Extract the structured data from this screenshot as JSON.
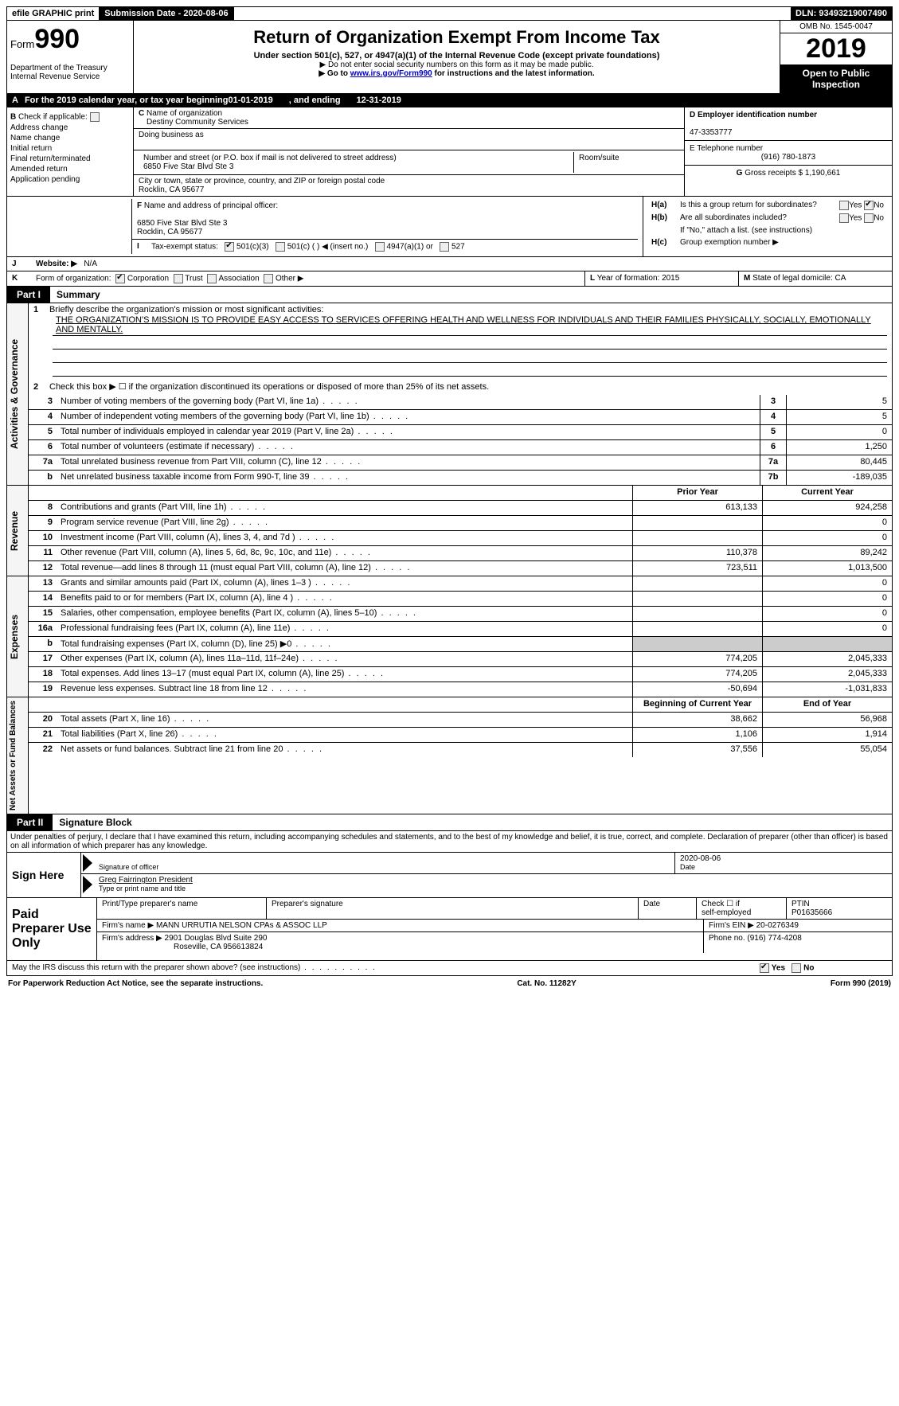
{
  "topbar": {
    "efile": "efile GRAPHIC print",
    "submission_label": "Submission Date - ",
    "submission_date": "2020-08-06",
    "dln_label": "DLN: ",
    "dln": "93493219007490"
  },
  "header": {
    "form_prefix": "Form",
    "form_number": "990",
    "dept": "Department of the Treasury",
    "irs": "Internal Revenue Service",
    "title": "Return of Organization Exempt From Income Tax",
    "subtitle": "Under section 501(c), 527, or 4947(a)(1) of the Internal Revenue Code (except private foundations)",
    "note1": "▶ Do not enter social security numbers on this form as it may be made public.",
    "note2_pre": "▶ Go to ",
    "note2_link": "www.irs.gov/Form990",
    "note2_post": " for instructions and the latest information.",
    "omb": "OMB No. 1545-0047",
    "year": "2019",
    "open": "Open to Public Inspection"
  },
  "periodline": {
    "a_label": "A",
    "text_pre": "For the 2019 calendar year, or tax year beginning ",
    "begin": "01-01-2019",
    "mid": ", and ending ",
    "end": "12-31-2019"
  },
  "boxB": {
    "label": "B",
    "check_label": "Check if applicable:",
    "items": [
      "Address change",
      "Name change",
      "Initial return",
      "Final return/terminated",
      "Amended return",
      "Application pending"
    ]
  },
  "boxC": {
    "c_label": "C",
    "name_label": "Name of organization",
    "name": "Destiny Community Services",
    "dba_label": "Doing business as",
    "dba": "",
    "street_label": "Number and street (or P.O. box if mail is not delivered to street address)",
    "street": "6850 Five Star Blvd Ste 3",
    "room_label": "Room/suite",
    "city_label": "City or town, state or province, country, and ZIP or foreign postal code",
    "city": "Rocklin, CA  95677"
  },
  "boxD": {
    "label": "D Employer identification number",
    "ein": "47-3353777"
  },
  "boxE": {
    "label": "E Telephone number",
    "phone": "(916) 780-1873"
  },
  "boxG": {
    "label": "G",
    "text": "Gross receipts $ ",
    "amount": "1,190,661"
  },
  "boxF": {
    "label": "F",
    "text": "Name and address of principal officer:",
    "line1": "6850 Five Star Blvd Ste 3",
    "line2": "Rocklin, CA  95677"
  },
  "boxH": {
    "ha_label": "H(a)",
    "ha_text": "Is this a group return for subordinates?",
    "hb_label": "H(b)",
    "hb_text": "Are all subordinates included?",
    "hb_note": "If \"No,\" attach a list. (see instructions)",
    "hc_label": "H(c)",
    "hc_text": "Group exemption number ▶",
    "yes": "Yes",
    "no": "No"
  },
  "boxI": {
    "label": "I",
    "text": "Tax-exempt status:",
    "opt1": "501(c)(3)",
    "opt2": "501(c) (  ) ◀ (insert no.)",
    "opt3": "4947(a)(1) or",
    "opt4": "527"
  },
  "boxJ": {
    "label": "J",
    "text": "Website: ▶",
    "value": "N/A"
  },
  "boxK": {
    "label": "K",
    "text": "Form of organization:",
    "opts": [
      "Corporation",
      "Trust",
      "Association",
      "Other ▶"
    ]
  },
  "boxL": {
    "label": "L",
    "text": "Year of formation: ",
    "val": "2015"
  },
  "boxM": {
    "label": "M",
    "text": "State of legal domicile: ",
    "val": "CA"
  },
  "part1": {
    "tab": "Part I",
    "title": "Summary"
  },
  "summary": {
    "sec1_label": "Activities & Governance",
    "line1_num": "1",
    "line1_text": "Briefly describe the organization's mission or most significant activities:",
    "line1_mission": "THE ORGANIZATION'S MISSION IS TO PROVIDE EASY ACCESS TO SERVICES OFFERING HEALTH AND WELLNESS FOR INDIVIDUALS AND THEIR FAMILIES PHYSICALLY, SOCIALLY, EMOTIONALLY AND MENTALLY.",
    "line2_num": "2",
    "line2_text": "Check this box ▶ ☐ if the organization discontinued its operations or disposed of more than 25% of its net assets.",
    "rows_ag": [
      {
        "n": "3",
        "d": "Number of voting members of the governing body (Part VI, line 1a)",
        "box": "3",
        "v": "5"
      },
      {
        "n": "4",
        "d": "Number of independent voting members of the governing body (Part VI, line 1b)",
        "box": "4",
        "v": "5"
      },
      {
        "n": "5",
        "d": "Total number of individuals employed in calendar year 2019 (Part V, line 2a)",
        "box": "5",
        "v": "0"
      },
      {
        "n": "6",
        "d": "Total number of volunteers (estimate if necessary)",
        "box": "6",
        "v": "1,250"
      },
      {
        "n": "7a",
        "d": "Total unrelated business revenue from Part VIII, column (C), line 12",
        "box": "7a",
        "v": "80,445"
      },
      {
        "n": "b",
        "d": "Net unrelated business taxable income from Form 990-T, line 39",
        "box": "7b",
        "v": "-189,035"
      }
    ],
    "prior_label": "Prior Year",
    "current_label": "Current Year",
    "sec2_label": "Revenue",
    "rows_rev": [
      {
        "n": "8",
        "d": "Contributions and grants (Part VIII, line 1h)",
        "p": "613,133",
        "c": "924,258"
      },
      {
        "n": "9",
        "d": "Program service revenue (Part VIII, line 2g)",
        "p": "",
        "c": "0"
      },
      {
        "n": "10",
        "d": "Investment income (Part VIII, column (A), lines 3, 4, and 7d )",
        "p": "",
        "c": "0"
      },
      {
        "n": "11",
        "d": "Other revenue (Part VIII, column (A), lines 5, 6d, 8c, 9c, 10c, and 11e)",
        "p": "110,378",
        "c": "89,242"
      },
      {
        "n": "12",
        "d": "Total revenue—add lines 8 through 11 (must equal Part VIII, column (A), line 12)",
        "p": "723,511",
        "c": "1,013,500"
      }
    ],
    "sec3_label": "Expenses",
    "rows_exp": [
      {
        "n": "13",
        "d": "Grants and similar amounts paid (Part IX, column (A), lines 1–3 )",
        "p": "",
        "c": "0"
      },
      {
        "n": "14",
        "d": "Benefits paid to or for members (Part IX, column (A), line 4 )",
        "p": "",
        "c": "0"
      },
      {
        "n": "15",
        "d": "Salaries, other compensation, employee benefits (Part IX, column (A), lines 5–10)",
        "p": "",
        "c": "0"
      },
      {
        "n": "16a",
        "d": "Professional fundraising fees (Part IX, column (A), line 11e)",
        "p": "",
        "c": "0"
      },
      {
        "n": "b",
        "d": "Total fundraising expenses (Part IX, column (D), line 25) ▶0",
        "p": "shade",
        "c": "shade"
      },
      {
        "n": "17",
        "d": "Other expenses (Part IX, column (A), lines 11a–11d, 11f–24e)",
        "p": "774,205",
        "c": "2,045,333"
      },
      {
        "n": "18",
        "d": "Total expenses. Add lines 13–17 (must equal Part IX, column (A), line 25)",
        "p": "774,205",
        "c": "2,045,333"
      },
      {
        "n": "19",
        "d": "Revenue less expenses. Subtract line 18 from line 12",
        "p": "-50,694",
        "c": "-1,031,833"
      }
    ],
    "sec4_label": "Net Assets or Fund Balances",
    "begin_label": "Beginning of Current Year",
    "end_label": "End of Year",
    "rows_na": [
      {
        "n": "20",
        "d": "Total assets (Part X, line 16)",
        "p": "38,662",
        "c": "56,968"
      },
      {
        "n": "21",
        "d": "Total liabilities (Part X, line 26)",
        "p": "1,106",
        "c": "1,914"
      },
      {
        "n": "22",
        "d": "Net assets or fund balances. Subtract line 21 from line 20",
        "p": "37,556",
        "c": "55,054"
      }
    ]
  },
  "part2": {
    "tab": "Part II",
    "title": "Signature Block"
  },
  "penalty": "Under penalties of perjury, I declare that I have examined this return, including accompanying schedules and statements, and to the best of my knowledge and belief, it is true, correct, and complete. Declaration of preparer (other than officer) is based on all information of which preparer has any knowledge.",
  "sign": {
    "here": "Sign Here",
    "sig_officer": "Signature of officer",
    "date_label": "Date",
    "date": "2020-08-06",
    "name": "Greg Fairrington President",
    "name_label": "Type or print name and title"
  },
  "paid": {
    "label": "Paid Preparer Use Only",
    "col1": "Print/Type preparer's name",
    "col2": "Preparer's signature",
    "col3": "Date",
    "col4_a": "Check ☐ if",
    "col4_b": "self-employed",
    "col5_label": "PTIN",
    "col5": "P01635666",
    "firm_name_label": "Firm's name    ▶",
    "firm_name": "MANN URRUTIA NELSON CPAs & ASSOC LLP",
    "firm_ein_label": "Firm's EIN ▶",
    "firm_ein": "20-0276349",
    "firm_addr_label": "Firm's address ▶",
    "firm_addr1": "2901 Douglas Blvd Suite 290",
    "firm_addr2": "Roseville, CA  956613824",
    "phone_label": "Phone no. ",
    "phone": "(916) 774-4208"
  },
  "discuss": {
    "text": "May the IRS discuss this return with the preparer shown above? (see instructions)",
    "yes": "Yes",
    "no": "No"
  },
  "footer": {
    "left": "For Paperwork Reduction Act Notice, see the separate instructions.",
    "mid": "Cat. No. 11282Y",
    "right_pre": "Form ",
    "right_form": "990",
    "right_post": " (2019)"
  }
}
